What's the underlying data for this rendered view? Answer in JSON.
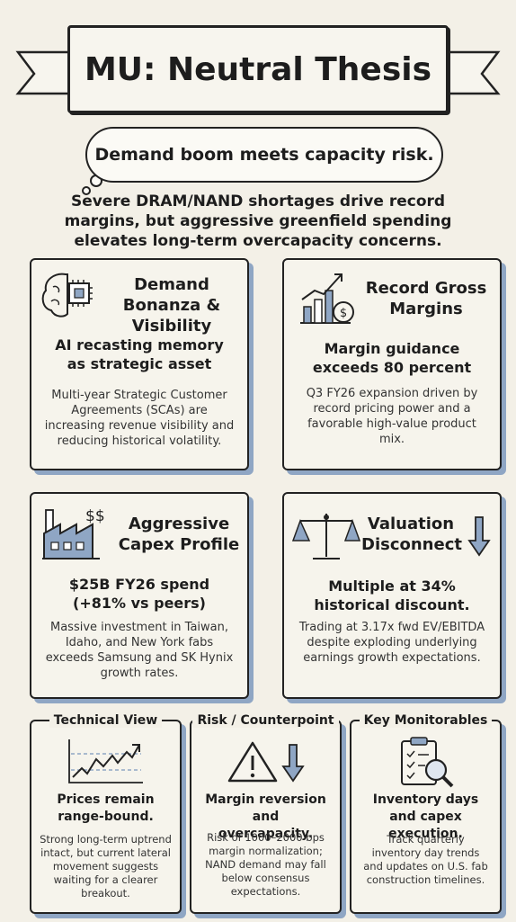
{
  "title": "MU: Neutral Thesis",
  "tagline": "Demand boom meets capacity risk.",
  "subtitle": "Severe DRAM/NAND shortages drive record margins, but aggressive greenfield spending elevates long-term overcapacity concerns.",
  "cards": [
    {
      "title": "Demand Bonanza & Visibility",
      "headline": "AI recasting memory as strategic asset",
      "body": "Multi-year Strategic Customer Agreements (SCAs) are increasing revenue visibility and reducing historical volatility.",
      "icon": "brain-chip-icon"
    },
    {
      "title": "Record Gross Margins",
      "headline": "Margin guidance exceeds 80 percent",
      "body": "Q3 FY26 expansion driven by record pricing power and a favorable high-value product mix.",
      "icon": "bar-chart-coin-icon"
    },
    {
      "title": "Aggressive Capex Profile",
      "headline": "$25B FY26 spend (+81% vs peers)",
      "body": "Massive investment in Taiwan, Idaho, and New York fabs exceeds Samsung and SK Hynix growth rates.",
      "icon": "factory-icon",
      "icon_text": "$$"
    },
    {
      "title": "Valuation Disconnect",
      "headline": "Multiple at 34% historical discount.",
      "body": "Trading at 3.17x fwd EV/EBITDA despite exploding underlying earnings growth expectations.",
      "icon": "scale-icon"
    }
  ],
  "small_cards": [
    {
      "title": "Technical View",
      "headline": "Prices remain range-bound.",
      "body": "Strong long-term uptrend intact, but current lateral movement suggests waiting for a clearer breakout.",
      "icon": "trend-chart-icon"
    },
    {
      "title": "Risk / Counterpoint",
      "headline": "Margin reversion and overcapacity.",
      "body": "Risk of 1000–2000 bps margin normalization; NAND demand may fall below consensus expectations.",
      "icon": "warning-icon"
    },
    {
      "title": "Key Monitorables",
      "headline": "Inventory days and capex execution.",
      "body": "Track quarterly inventory day trends and updates on U.S. fab construction timelines.",
      "icon": "clipboard-magnifier-icon"
    }
  ],
  "colors": {
    "accent": "#8fa6c4",
    "background": "#f3f0e7",
    "ink": "#222222"
  }
}
